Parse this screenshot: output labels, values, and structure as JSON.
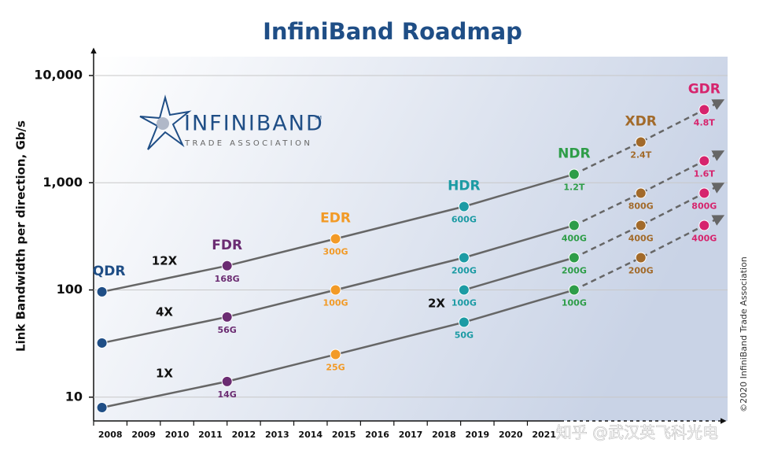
{
  "chart_data": {
    "type": "line",
    "title": "InfiniBand Roadmap",
    "y_label": "Link Bandwidth per direction, Gb/s",
    "logo": {
      "name": "INFINIBAND",
      "mark": "SM",
      "subtitle": "TRADE ASSOCIATION"
    },
    "copyright": "©2020 InfiniBand Trade Association",
    "watermark": "知乎 @武汉英飞科光电",
    "log_scale": true,
    "grid": true,
    "ylim": [
      6,
      15000
    ],
    "yticks": [
      10,
      100,
      {
        "value": 1000,
        "label": "1,000"
      },
      {
        "value": 10000,
        "label": "10,000"
      }
    ],
    "xlim": [
      2008,
      2027
    ],
    "xticks": [
      2008,
      2009,
      2010,
      2011,
      2012,
      2013,
      2014,
      2015,
      2016,
      2017,
      2018,
      2019,
      2020,
      2021
    ],
    "generations": [
      {
        "name": "QDR",
        "color": "#1f4e86",
        "x": 2008.25
      },
      {
        "name": "FDR",
        "color": "#6b2c72",
        "x": 2012
      },
      {
        "name": "EDR",
        "color": "#f29a26",
        "x": 2015.25
      },
      {
        "name": "HDR",
        "color": "#1c9ba4",
        "x": 2019.1
      },
      {
        "name": "NDR",
        "color": "#2e9d48",
        "x": 2022.4
      },
      {
        "name": "XDR",
        "color": "#a26a2a",
        "x": 2024.4
      },
      {
        "name": "GDR",
        "color": "#d6246d",
        "x": 2026.3
      }
    ],
    "series": [
      {
        "name": "12X",
        "color": "#666666",
        "values": [
          96,
          168,
          300,
          600,
          1200,
          2400,
          4800
        ],
        "value_labels": [
          null,
          "168G",
          "300G",
          "600G",
          "1.2T",
          "2.4T",
          "4.8T"
        ]
      },
      {
        "name": "4X",
        "color": "#666666",
        "values": [
          32,
          56,
          100,
          200,
          400,
          800,
          1600
        ],
        "value_labels": [
          null,
          "56G",
          "100G",
          "200G",
          "400G",
          "800G",
          "1.6T"
        ]
      },
      {
        "name": "2X",
        "color": "#666666",
        "values": [
          null,
          null,
          null,
          100,
          200,
          400,
          800
        ],
        "value_labels": [
          null,
          null,
          null,
          "100G",
          "200G",
          "400G",
          "800G"
        ]
      },
      {
        "name": "1X",
        "color": "#666666",
        "values": [
          8,
          14,
          25,
          50,
          100,
          200,
          400
        ],
        "value_labels": [
          null,
          "14G",
          "25G",
          "50G",
          "100G",
          "200G",
          "400G"
        ]
      }
    ]
  }
}
